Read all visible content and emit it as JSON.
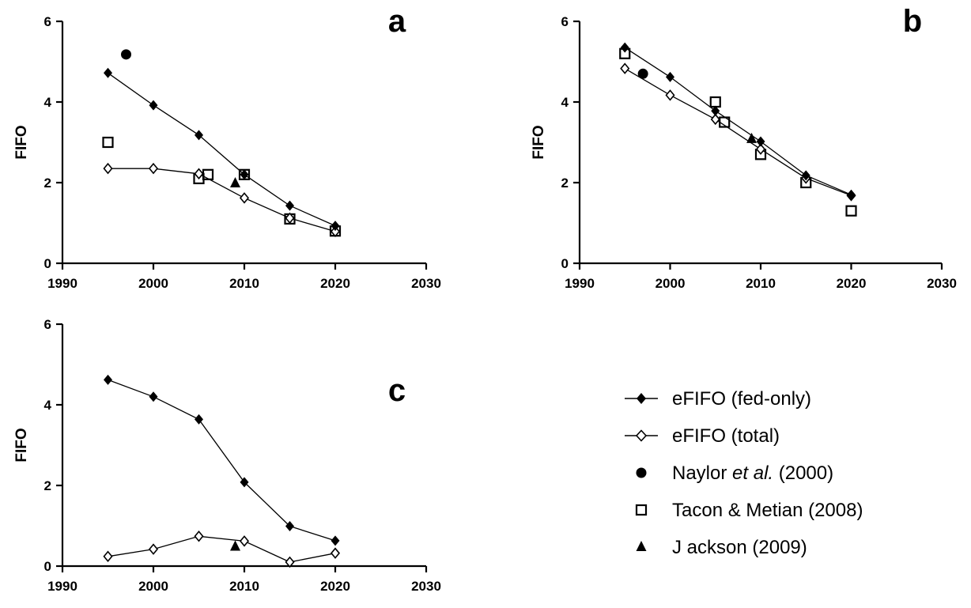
{
  "chart_data": [
    {
      "type": "scatter",
      "panel_label": "a",
      "xlabel": "",
      "ylabel": "FIFO",
      "xlim": [
        1990,
        2030
      ],
      "ylim": [
        0,
        6
      ],
      "xticks": [
        1990,
        2000,
        2010,
        2020,
        2030
      ],
      "yticks": [
        0,
        2,
        4,
        6
      ],
      "grid": false,
      "series": [
        {
          "key": "fed",
          "x": [
            1995,
            2000,
            2005,
            2010,
            2015,
            2020
          ],
          "y": [
            4.72,
            3.92,
            3.18,
            2.2,
            1.43,
            0.93
          ]
        },
        {
          "key": "total",
          "x": [
            1995,
            2000,
            2005,
            2010,
            2015,
            2020
          ],
          "y": [
            2.35,
            2.35,
            2.22,
            1.62,
            1.12,
            0.79
          ]
        },
        {
          "key": "naylor",
          "x": [
            1997
          ],
          "y": [
            5.18
          ]
        },
        {
          "key": "tacon",
          "x": [
            1995,
            2005,
            2006,
            2010,
            2015,
            2020
          ],
          "y": [
            3.0,
            2.1,
            2.2,
            2.2,
            1.1,
            0.8
          ]
        },
        {
          "key": "jackson",
          "x": [
            2009
          ],
          "y": [
            2.0
          ]
        }
      ]
    },
    {
      "type": "scatter",
      "panel_label": "b",
      "xlabel": "",
      "ylabel": "FIFO",
      "xlim": [
        1990,
        2030
      ],
      "ylim": [
        0,
        6
      ],
      "xticks": [
        1990,
        2000,
        2010,
        2020,
        2030
      ],
      "yticks": [
        0,
        2,
        4,
        6
      ],
      "grid": false,
      "series": [
        {
          "key": "fed",
          "x": [
            1995,
            2000,
            2005,
            2010,
            2015,
            2020
          ],
          "y": [
            5.35,
            4.62,
            3.78,
            3.02,
            2.18,
            1.7
          ]
        },
        {
          "key": "total",
          "x": [
            1995,
            2000,
            2005,
            2010,
            2015,
            2020
          ],
          "y": [
            4.83,
            4.17,
            3.57,
            2.83,
            2.11,
            1.68
          ]
        },
        {
          "key": "naylor",
          "x": [
            1997
          ],
          "y": [
            4.7
          ]
        },
        {
          "key": "tacon",
          "x": [
            1995,
            2005,
            2006,
            2010,
            2015,
            2020
          ],
          "y": [
            5.2,
            4.0,
            3.5,
            2.7,
            2.0,
            1.3
          ]
        },
        {
          "key": "jackson",
          "x": [
            2009
          ],
          "y": [
            3.1
          ]
        }
      ]
    },
    {
      "type": "scatter",
      "panel_label": "c",
      "xlabel": "",
      "ylabel": "FIFO",
      "xlim": [
        1990,
        2030
      ],
      "ylim": [
        0,
        6
      ],
      "xticks": [
        1990,
        2000,
        2010,
        2020,
        2030
      ],
      "yticks": [
        0,
        2,
        4,
        6
      ],
      "grid": false,
      "series": [
        {
          "key": "fed",
          "x": [
            1995,
            2000,
            2005,
            2010,
            2015,
            2020
          ],
          "y": [
            4.62,
            4.2,
            3.64,
            2.08,
            0.99,
            0.63
          ]
        },
        {
          "key": "total",
          "x": [
            1995,
            2000,
            2005,
            2010,
            2015,
            2020
          ],
          "y": [
            0.24,
            0.42,
            0.74,
            0.62,
            0.1,
            0.32
          ]
        },
        {
          "key": "jackson",
          "x": [
            2009
          ],
          "y": [
            0.5
          ]
        }
      ]
    }
  ],
  "legend": {
    "placement": "bottom-right",
    "entries": [
      {
        "key": "fed",
        "marker": "filled-diamond-line",
        "name": "eFIFO (fed-only)",
        "name_italic": "",
        "name_suffix": ""
      },
      {
        "key": "total",
        "marker": "open-diamond-line",
        "name": "eFIFO (total)",
        "name_italic": "",
        "name_suffix": ""
      },
      {
        "key": "naylor",
        "marker": "filled-circle",
        "name": "Naylor ",
        "name_italic": "et al.",
        "name_suffix": " (2000)"
      },
      {
        "key": "tacon",
        "marker": "open-square",
        "name": "Tacon & Metian (2008)",
        "name_italic": "",
        "name_suffix": ""
      },
      {
        "key": "jackson",
        "marker": "filled-triangle",
        "name": "J ackson (2009)",
        "name_italic": "",
        "name_suffix": ""
      }
    ]
  },
  "colors": {
    "ink": "#000000",
    "background": "#ffffff"
  }
}
